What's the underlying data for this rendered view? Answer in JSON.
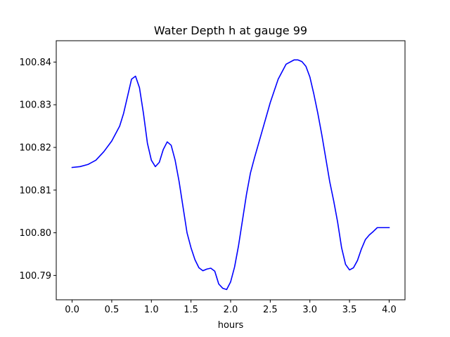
{
  "chart_data": {
    "type": "line",
    "title": "Water Depth h at gauge 99",
    "xlabel": "hours",
    "ylabel": "",
    "xlim": [
      -0.2,
      4.2
    ],
    "ylim": [
      100.7843,
      100.845
    ],
    "xticks": [
      0.0,
      0.5,
      1.0,
      1.5,
      2.0,
      2.5,
      3.0,
      3.5,
      4.0
    ],
    "xtick_labels": [
      "0.0",
      "0.5",
      "1.0",
      "1.5",
      "2.0",
      "2.5",
      "3.0",
      "3.5",
      "4.0"
    ],
    "yticks": [
      100.79,
      100.8,
      100.81,
      100.82,
      100.83,
      100.84
    ],
    "ytick_labels": [
      "100.79",
      "100.80",
      "100.81",
      "100.82",
      "100.83",
      "100.84"
    ],
    "grid": false,
    "series": [
      {
        "color": "#0000ff",
        "x": [
          0.0,
          0.1,
          0.2,
          0.3,
          0.4,
          0.5,
          0.6,
          0.65,
          0.7,
          0.75,
          0.8,
          0.85,
          0.9,
          0.95,
          1.0,
          1.05,
          1.1,
          1.15,
          1.2,
          1.25,
          1.3,
          1.35,
          1.4,
          1.45,
          1.5,
          1.55,
          1.6,
          1.65,
          1.7,
          1.75,
          1.8,
          1.85,
          1.9,
          1.95,
          2.0,
          2.05,
          2.1,
          2.15,
          2.2,
          2.25,
          2.3,
          2.4,
          2.5,
          2.6,
          2.7,
          2.8,
          2.85,
          2.9,
          2.95,
          3.0,
          3.05,
          3.1,
          3.15,
          3.2,
          3.25,
          3.3,
          3.35,
          3.4,
          3.45,
          3.5,
          3.55,
          3.6,
          3.65,
          3.7,
          3.75,
          3.8,
          3.85,
          3.9,
          3.95,
          4.0
        ],
        "y": [
          100.8153,
          100.8155,
          100.816,
          100.817,
          100.819,
          100.8215,
          100.825,
          100.828,
          100.832,
          100.836,
          100.8367,
          100.834,
          100.828,
          100.821,
          100.817,
          100.8155,
          100.8165,
          100.8195,
          100.8213,
          100.8205,
          100.817,
          100.812,
          100.806,
          100.8,
          100.7965,
          100.7937,
          100.7918,
          100.7911,
          100.7915,
          100.7917,
          100.791,
          100.788,
          100.787,
          100.7867,
          100.7885,
          100.792,
          100.797,
          100.803,
          100.809,
          100.814,
          100.8175,
          100.824,
          100.8305,
          100.836,
          100.8395,
          100.8405,
          100.8405,
          100.8401,
          100.839,
          100.8365,
          100.8325,
          100.828,
          100.823,
          100.8175,
          100.812,
          100.8075,
          100.8025,
          100.7965,
          100.7926,
          100.7913,
          100.7918,
          100.7935,
          100.7962,
          100.7984,
          100.7995,
          100.8003,
          100.8012,
          100.8012,
          100.8012,
          100.8012
        ]
      }
    ]
  }
}
